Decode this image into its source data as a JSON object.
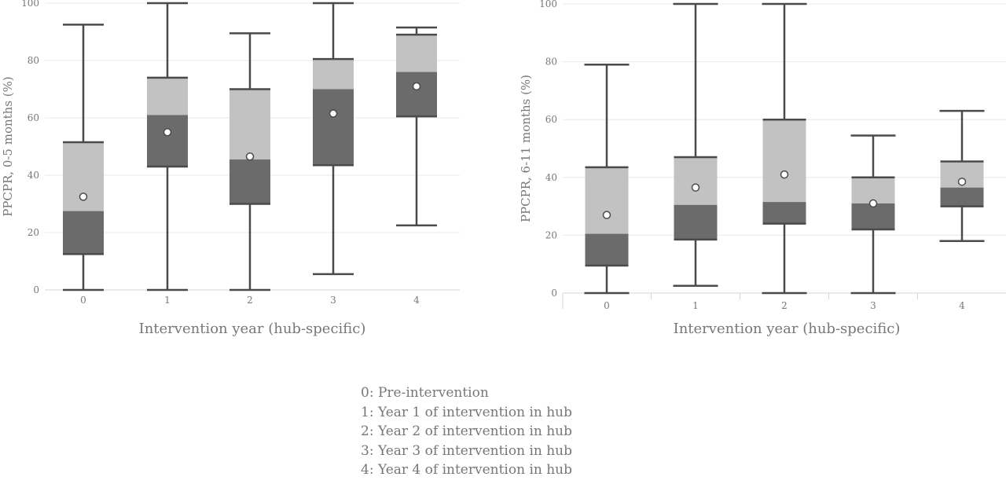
{
  "colors": {
    "q1": "#6b6b6b",
    "q3": "#c2c2c2",
    "whisker": "#4a4a4a",
    "grid": "#e8e8e8",
    "axis": "#d5d5d5",
    "text": "#777777",
    "mean_fill": "#ffffff"
  },
  "chart_data": [
    {
      "type": "box",
      "xlabel": "Intervention year (hub-specific)",
      "ylabel": "PPCPR, 0-5 months (%)",
      "ylim": [
        0,
        100
      ],
      "yticks": [
        "0",
        "20",
        "40",
        "60",
        "80",
        "100"
      ],
      "categories": [
        "0",
        "1",
        "2",
        "3",
        "4"
      ],
      "boxes": [
        {
          "min": 0,
          "q1": 12.5,
          "median": 27.5,
          "q3": 51.5,
          "max": 92.5,
          "mean": 32.5
        },
        {
          "min": 0,
          "q1": 43,
          "median": 61,
          "q3": 74,
          "max": 100,
          "mean": 55
        },
        {
          "min": 0,
          "q1": 30,
          "median": 45.5,
          "q3": 70,
          "max": 89.5,
          "mean": 46.5
        },
        {
          "min": 5.5,
          "q1": 43.5,
          "median": 70,
          "q3": 80.5,
          "max": 100,
          "mean": 61.5
        },
        {
          "min": 22.5,
          "q1": 60.5,
          "median": 76,
          "q3": 89,
          "max": 91.5,
          "mean": 71
        }
      ],
      "grid": true
    },
    {
      "type": "box",
      "xlabel": "Intervention year (hub-specific)",
      "ylabel": "PPCPR, 6-11 months (%)",
      "ylim": [
        0,
        100
      ],
      "yticks": [
        "0",
        "20",
        "40",
        "60",
        "80",
        "100"
      ],
      "categories": [
        "0",
        "1",
        "2",
        "3",
        "4"
      ],
      "boxes": [
        {
          "min": 0,
          "q1": 9.5,
          "median": 20.5,
          "q3": 43.5,
          "max": 79,
          "mean": 27
        },
        {
          "min": 2.5,
          "q1": 18.5,
          "median": 30.5,
          "q3": 47,
          "max": 100,
          "mean": 36.5
        },
        {
          "min": 0,
          "q1": 24,
          "median": 31.5,
          "q3": 60,
          "max": 100,
          "mean": 41
        },
        {
          "min": 0,
          "q1": 22,
          "median": 31,
          "q3": 40,
          "max": 54.5,
          "mean": 31
        },
        {
          "min": 18,
          "q1": 30,
          "median": 36.5,
          "q3": 45.5,
          "max": 63,
          "mean": 38.5
        }
      ],
      "grid": true
    }
  ],
  "legend": {
    "items": [
      "0: Pre-intervention",
      "1: Year 1 of intervention in hub",
      "2: Year 2 of intervention in hub",
      "3: Year 3 of intervention in hub",
      "4: Year 4 of intervention in hub"
    ]
  }
}
